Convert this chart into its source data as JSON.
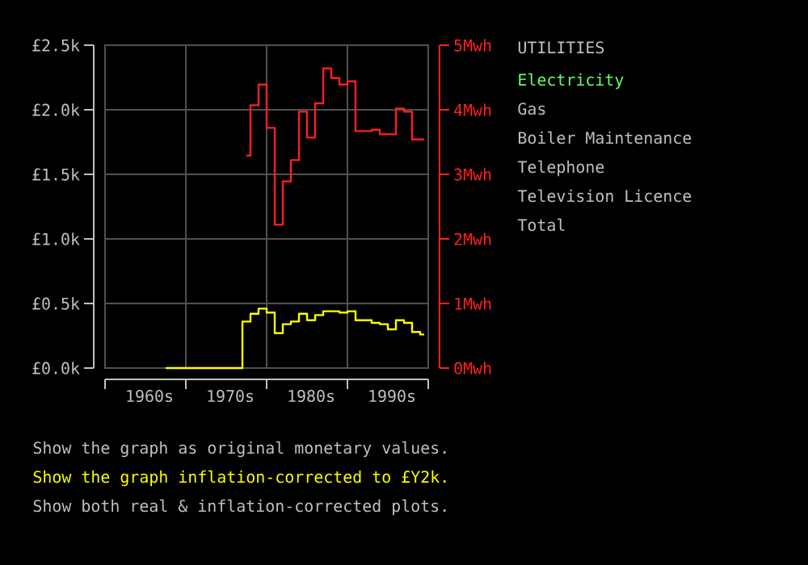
{
  "chart_data": {
    "type": "step",
    "title": "UTILITIES",
    "subtitle": "Electricity",
    "annotations": [
      "Gas",
      "Boiler Maintenance",
      "Telephone",
      "Television Licence",
      "Total",
      "Show the graph as original monetary values.",
      "Show the graph inflation-corrected to £Y2k.",
      "Show both real & inflation-corrected plots."
    ],
    "categories": [
      null,
      null,
      null,
      null,
      null,
      "1960s",
      null,
      null,
      null,
      null,
      null,
      null,
      null,
      null,
      null,
      "1970s",
      null,
      null,
      null,
      null,
      null,
      null,
      null,
      null,
      null,
      "1980s",
      null,
      null,
      null,
      null,
      null,
      null,
      null,
      null,
      null,
      "1990s",
      null,
      null,
      null,
      null
    ],
    "ylim": [
      0,
      2.5
    ],
    "yticks": [
      {
        "value": 0,
        "label": "£0.0k"
      },
      {
        "value": 0.5,
        "label": "£0.5k"
      },
      {
        "value": 1,
        "label": "£1.0k"
      },
      {
        "value": 1.5,
        "label": "£1.5k"
      },
      {
        "value": 2,
        "label": "£2.0k"
      },
      {
        "value": 2.5,
        "label": "£2.5k"
      }
    ],
    "y2lim": [
      0,
      5
    ],
    "y2ticks": [
      {
        "value": 0,
        "label": "0Mwh"
      },
      {
        "value": 1,
        "label": "1Mwh"
      },
      {
        "value": 2,
        "label": "2Mwh"
      },
      {
        "value": 3,
        "label": "3Mwh"
      },
      {
        "value": 4,
        "label": "4Mwh"
      },
      {
        "value": 5,
        "label": "5Mwh"
      }
    ],
    "grid": true,
    "series": [
      {
        "color": "#ffff00",
        "values": [
          null,
          null,
          null,
          null,
          null,
          null,
          null,
          0,
          0,
          0,
          0,
          0,
          0,
          0,
          0,
          0,
          0,
          0.36,
          0.42,
          0.46,
          0.43,
          0.27,
          0.34,
          0.36,
          0.42,
          0.37,
          0.41,
          0.44,
          0.44,
          0.43,
          0.44,
          0.37,
          0.37,
          0.35,
          0.34,
          0.3,
          0.37,
          0.35,
          0.28,
          0.26
        ]
      },
      {
        "color": "#ff2020",
        "axis": "y2",
        "values": [
          null,
          null,
          null,
          null,
          null,
          null,
          null,
          null,
          null,
          null,
          null,
          null,
          null,
          null,
          null,
          null,
          null,
          3.29,
          4.07,
          4.39,
          3.72,
          2.22,
          2.89,
          3.22,
          3.97,
          3.57,
          4.1,
          4.64,
          4.49,
          4.39,
          4.44,
          3.67,
          3.67,
          3.69,
          3.62,
          3.62,
          4.02,
          3.97,
          3.54,
          3.54
        ]
      }
    ]
  }
}
